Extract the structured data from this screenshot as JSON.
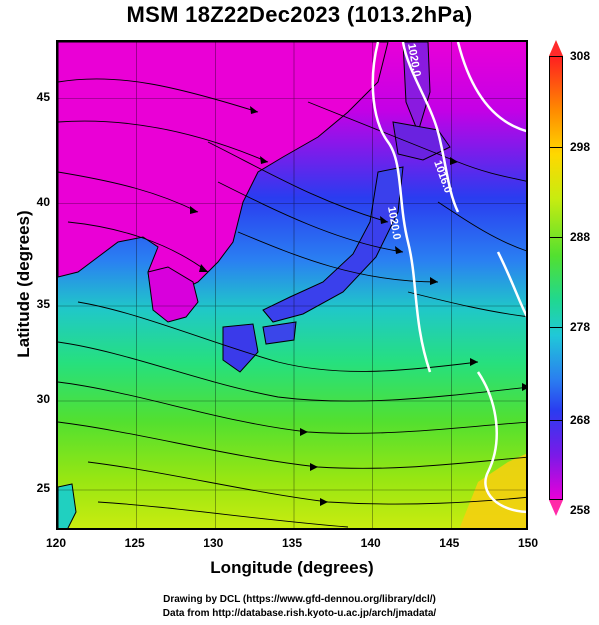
{
  "title": "MSM 18Z22Dec2023 (1013.2hPa)",
  "map": {
    "xlabel": "Longitude (degrees)",
    "ylabel": "Latitude  (degrees)",
    "x_ticks": [
      "120",
      "125",
      "130",
      "135",
      "140",
      "145",
      "150"
    ],
    "y_ticks": [
      "25",
      "30",
      "35",
      "40",
      "45"
    ],
    "lon_range": [
      120,
      150
    ],
    "lat_range": [
      22.4,
      47.6
    ],
    "contour_labels": [
      "1020.0",
      "1016.0",
      "1020.0"
    ],
    "field": "temperature (K) with surface wind streamlines"
  },
  "colorbar": {
    "ticks": [
      "308",
      "298",
      "288",
      "278",
      "268",
      "258"
    ],
    "range": [
      258,
      308
    ],
    "colors": [
      "#ff2020",
      "#ffd800",
      "#52e030",
      "#20c8d8",
      "#2a3cf0",
      "#e800d8"
    ]
  },
  "credits": {
    "line1": "Drawing by DCL (https://www.gfd-dennou.org/library/dcl/)",
    "line2": "Data from http://database.rish.kyoto-u.ac.jp/arch/jmadata/"
  }
}
